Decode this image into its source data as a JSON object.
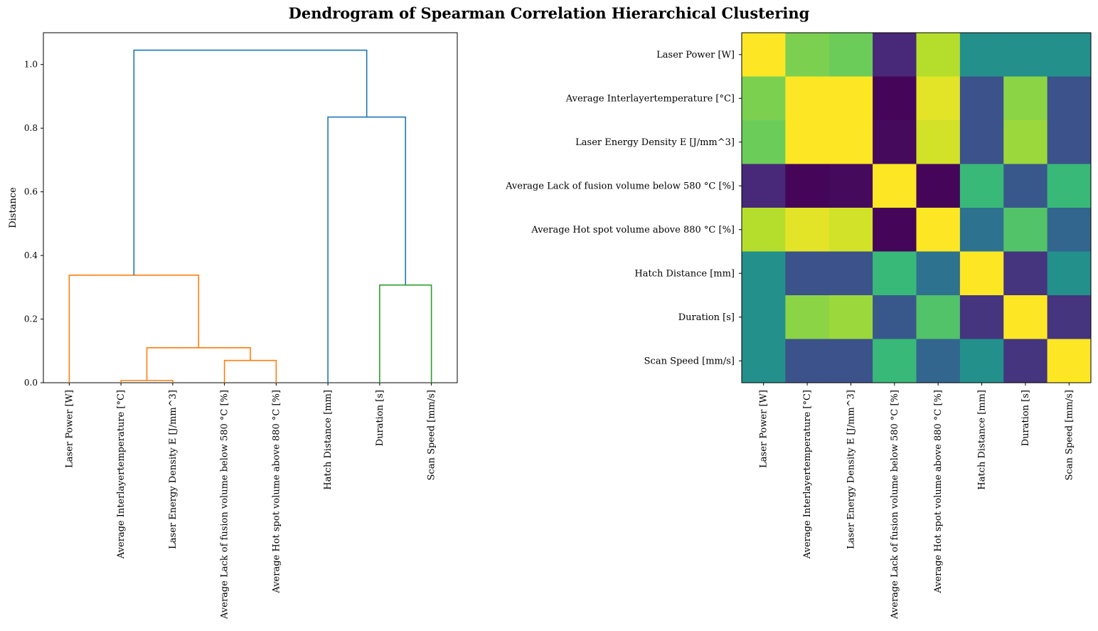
{
  "title": "Dendrogram of Spearman Correlation Hierarchical Clustering",
  "chart_data": [
    {
      "type": "dendrogram",
      "ylabel": "Distance",
      "ylim": [
        0,
        1.1
      ],
      "yticks": [
        "0.0",
        "0.2",
        "0.4",
        "0.6",
        "0.8",
        "1.0"
      ],
      "leaves": [
        "Laser Power [W]",
        "Average Interlayertemperature [°C]",
        "Laser Energy Density E [J/mm^3]",
        "Average Lack of fusion volume below 580 °C [%]",
        "Average Hot spot volume above 880 °C [%]",
        "Hatch Distance [mm]",
        "Duration [s]",
        "Scan Speed [mm/s]"
      ],
      "colors": {
        "orange": "#ff7f0e",
        "green": "#2ca02c",
        "blue": "#1f77b4"
      },
      "links": [
        {
          "name": "link-interlayer-energy",
          "left": 1,
          "right": 2,
          "left_h": 0,
          "right_h": 0,
          "height": 0.007,
          "color": "orange"
        },
        {
          "name": "link-lackfusion-hotspot",
          "left": 3,
          "right": 4,
          "left_h": 0,
          "right_h": 0,
          "height": 0.07,
          "color": "orange"
        },
        {
          "name": "link-merge-inner",
          "left": 1.5,
          "right": 3.5,
          "left_h": 0.007,
          "right_h": 0.07,
          "height": 0.11,
          "color": "orange"
        },
        {
          "name": "link-laserpower-cluster",
          "left": 0,
          "right": 2.5,
          "left_h": 0,
          "right_h": 0.11,
          "height": 0.338,
          "color": "orange"
        },
        {
          "name": "link-duration-scanspeed",
          "left": 6,
          "right": 7,
          "left_h": 0,
          "right_h": 0,
          "height": 0.307,
          "color": "green"
        },
        {
          "name": "link-hatch-cluster",
          "left": 5,
          "right": 6.5,
          "left_h": 0,
          "right_h": 0.307,
          "height": 0.835,
          "color": "blue"
        },
        {
          "name": "link-root",
          "left": 1.25,
          "right": 5.75,
          "left_h": 0.338,
          "right_h": 0.835,
          "height": 1.045,
          "color": "blue"
        }
      ]
    },
    {
      "type": "heatmap",
      "colormap": "viridis",
      "row_labels": [
        "Laser Power [W]",
        "Average Interlayertemperature [°C]",
        "Laser Energy Density E [J/mm^3]",
        "Average Lack of fusion volume below 580 °C [%]",
        "Average Hot spot volume above 880 °C [%]",
        "Hatch Distance [mm]",
        "Duration [s]",
        "Scan Speed [mm/s]"
      ],
      "col_labels": [
        "Laser Power [W]",
        "Average Interlayertemperature [°C]",
        "Laser Energy Density E [J/mm^3]",
        "Average Lack of fusion volume below 580 °C [%]",
        "Average Hot spot volume above 880 °C [%]",
        "Hatch Distance [mm]",
        "Duration [s]",
        "Scan Speed [mm/s]"
      ],
      "values": [
        [
          1.0,
          0.6,
          0.55,
          -0.78,
          0.78,
          0.0,
          0.0,
          0.0
        ],
        [
          0.6,
          1.0,
          1.0,
          -0.97,
          0.92,
          -0.5,
          0.65,
          -0.5
        ],
        [
          0.55,
          1.0,
          1.0,
          -0.95,
          0.87,
          -0.5,
          0.7,
          -0.5
        ],
        [
          -0.78,
          -0.97,
          -0.95,
          1.0,
          -0.97,
          0.35,
          -0.45,
          0.35
        ],
        [
          0.78,
          0.92,
          0.87,
          -0.97,
          1.0,
          -0.25,
          0.45,
          -0.35
        ],
        [
          0.0,
          -0.5,
          -0.5,
          0.35,
          -0.25,
          1.0,
          -0.7,
          0.0
        ],
        [
          0.0,
          0.65,
          0.7,
          -0.45,
          0.45,
          -0.7,
          1.0,
          -0.7
        ],
        [
          0.0,
          -0.5,
          -0.5,
          0.35,
          -0.35,
          0.0,
          -0.7,
          1.0
        ]
      ]
    }
  ]
}
